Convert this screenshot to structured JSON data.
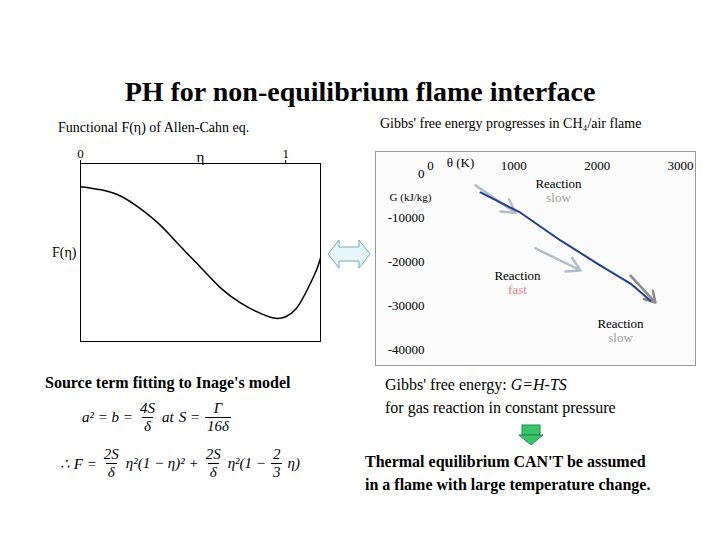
{
  "title": "PH for non-equilibrium flame interface",
  "chart_data": [
    {
      "type": "line",
      "title": "Functional F(η) of Allen-Cahn eq.",
      "x_label": "η",
      "y_label": "F(η)",
      "x": [
        0,
        0.1,
        0.195,
        0.29,
        0.39,
        0.49,
        0.585,
        0.68,
        0.78,
        0.88,
        0.95,
        1.0,
        1.05,
        1.1,
        1.15,
        1.17
      ],
      "values": [
        -0.15,
        -0.17,
        -0.21,
        -0.29,
        -0.4,
        -0.54,
        -0.67,
        -0.8,
        -0.9,
        -0.97,
        -1.0,
        -0.99,
        -0.94,
        -0.83,
        -0.69,
        -0.61
      ],
      "color": "#000000",
      "xlim": [
        0,
        1.17
      ],
      "ylim": [
        -1.15,
        0
      ],
      "xticks": [
        0,
        1
      ],
      "tick_labels": "x"
    },
    {
      "type": "line",
      "title": "Gibbs' free energy progresses in CH₄/air flame",
      "x_label": "θ (K)",
      "y_label": "G (kJ/kg)",
      "x": [
        600,
        1080,
        1560,
        2040,
        2400,
        2640
      ],
      "values": [
        -4300,
        -8900,
        -15200,
        -20900,
        -25000,
        -28900
      ],
      "color": "#1f3f8f",
      "xlim": [
        -660,
        3180
      ],
      "ylim": [
        -43600,
        5000
      ],
      "xticks": [
        0,
        1000,
        2000,
        3000
      ],
      "yticks": [
        0,
        -10000,
        -20000,
        -30000,
        -40000
      ],
      "annotations": [
        {
          "x": 1536,
          "y": -3860,
          "lines": [
            {
              "text": "Reaction",
              "color": "#000000"
            },
            {
              "text": "slow",
              "color": "#a0a0a0"
            }
          ]
        },
        {
          "x": 1044,
          "y": -24800,
          "lines": [
            {
              "text": "Reaction",
              "color": "#000000"
            },
            {
              "text": "fast",
              "color": "#f08080"
            }
          ]
        },
        {
          "x": 2280,
          "y": -35700,
          "lines": [
            {
              "text": "Reaction",
              "color": "#000000"
            },
            {
              "text": "slow",
              "color": "#a0a0a0"
            }
          ]
        }
      ],
      "arrows": [
        {
          "x1": 540,
          "y1": -2700,
          "x2": 1020,
          "y2": -8900,
          "color": "#b4bccc"
        },
        {
          "x1": 1260,
          "y1": -17000,
          "x2": 1800,
          "y2": -22000,
          "color": "#b4bccc"
        },
        {
          "x1": 2400,
          "y1": -23200,
          "x2": 2700,
          "y2": -29300,
          "color": "#8c8c8c"
        }
      ]
    }
  ],
  "left_caption": "Source term fitting to Inage's model",
  "formulas": [
    [
      "a² = b =",
      {
        "num": "4S",
        "den": "δ"
      },
      "at",
      "S =",
      {
        "num": "Γ",
        "den": "16δ"
      }
    ],
    [
      "∴ F =",
      {
        "num": "2S",
        "den": "δ"
      },
      "η²(1 − η)² +",
      {
        "num": "2S",
        "den": "δ"
      },
      "η²(1 −",
      {
        "num": "2",
        "den": "3"
      },
      "η)"
    ]
  ],
  "gibbs_label": "Gibbs' free energy:",
  "gibbs_formula": "G=H-TS",
  "gibbs_note": "for gas reaction in constant pressure",
  "conclusion": [
    "Thermal equilibrium CAN'T be assumed",
    "in a flame with large temperature change."
  ]
}
